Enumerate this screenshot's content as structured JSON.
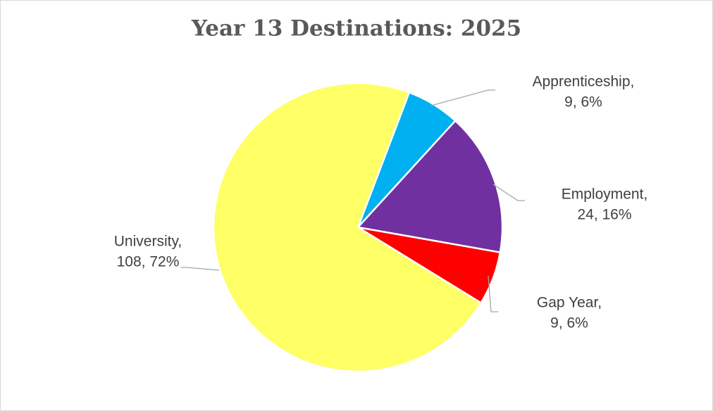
{
  "chart_data": {
    "type": "pie",
    "title": "Year 13 Destinations: 2025",
    "categories": [
      "Apprenticeship,",
      "Employment,",
      "Gap Year,",
      "University,"
    ],
    "values": [
      9,
      24,
      9,
      108
    ],
    "value_labels": [
      "9, 6%",
      "24, 16%",
      "9, 6%",
      "108, 72%"
    ],
    "colors": [
      "#00b0f0",
      "#7030a0",
      "#ff0000",
      "#ffff66"
    ]
  }
}
